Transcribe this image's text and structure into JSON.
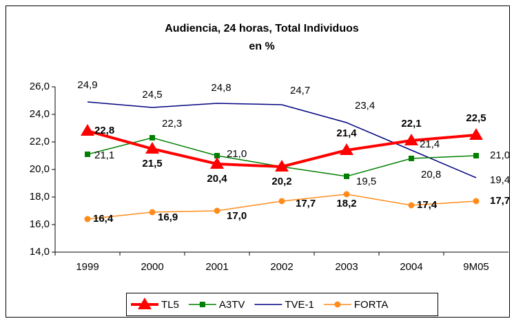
{
  "chart_data": {
    "type": "line",
    "title": [
      "Audiencia, 24 horas, Total Individuos",
      "en %"
    ],
    "categories": [
      "1999",
      "2000",
      "2001",
      "2002",
      "2003",
      "2004",
      "9M05"
    ],
    "ylim": [
      14,
      26
    ],
    "yticks": [
      {
        "value": 14,
        "label": "14,0"
      },
      {
        "value": 16,
        "label": "16,0"
      },
      {
        "value": 18,
        "label": "18,0"
      },
      {
        "value": 20,
        "label": "20,0"
      },
      {
        "value": 22,
        "label": "22,0"
      },
      {
        "value": 24,
        "label": "24,0"
      },
      {
        "value": 26,
        "label": "26,0"
      }
    ],
    "series": [
      {
        "name": "TL5",
        "color": "#ff0000",
        "marker": "triangle",
        "values": [
          22.8,
          21.5,
          20.4,
          20.2,
          21.4,
          22.1,
          22.5
        ],
        "value_labels": [
          "22,8",
          "21,5",
          "20,4",
          "20,2",
          "21,4",
          "22,1",
          "22,5"
        ]
      },
      {
        "name": "A3TV",
        "color": "#008000",
        "marker": "square",
        "values": [
          21.1,
          22.3,
          21.0,
          20.2,
          19.5,
          20.8,
          21.0
        ],
        "value_labels": [
          "21,1",
          "22,3",
          "21,0",
          null,
          "19,5",
          "20,8",
          "21,0"
        ]
      },
      {
        "name": "TVE-1",
        "color": "#000080",
        "marker": "none",
        "values": [
          24.9,
          24.5,
          24.8,
          24.7,
          23.4,
          21.4,
          19.4
        ],
        "value_labels": [
          "24,9",
          "24,5",
          "24,8",
          "24,7",
          "23,4",
          "21,4",
          "19,4"
        ]
      },
      {
        "name": "FORTA",
        "color": "#ff8c1a",
        "marker": "circle",
        "values": [
          16.4,
          16.9,
          17.0,
          17.7,
          18.2,
          17.4,
          17.7
        ],
        "value_labels": [
          "16,4",
          "16,9",
          "17,0",
          "17,7",
          "18,2",
          "17,4",
          "17,7"
        ]
      }
    ]
  }
}
